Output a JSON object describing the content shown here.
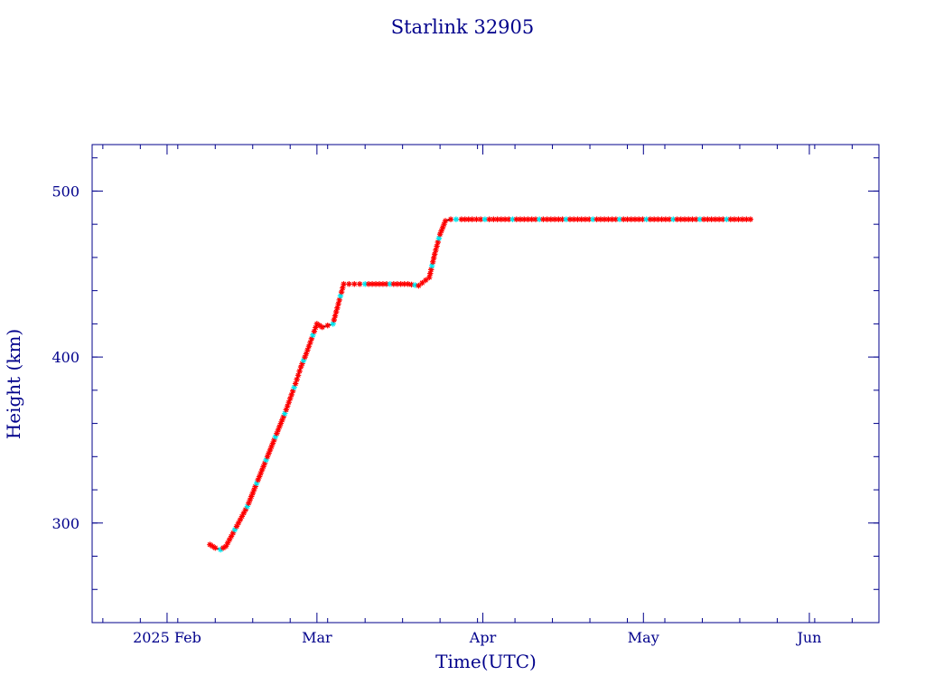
{
  "chart_data": {
    "type": "scatter",
    "title": "Starlink 32905",
    "xlabel": "Time(UTC)",
    "ylabel": "Height (km)",
    "x_ticks": [
      {
        "date": "2025-02-01",
        "label": "2025 Feb"
      },
      {
        "date": "2025-03-01",
        "label": "Mar"
      },
      {
        "date": "2025-04-01",
        "label": "Apr"
      },
      {
        "date": "2025-05-01",
        "label": "May"
      },
      {
        "date": "2025-06-01",
        "label": "Jun"
      }
    ],
    "y_ticks": [
      300,
      400,
      500
    ],
    "xlim": [
      "2025-01-18",
      "2025-06-14"
    ],
    "ylim": [
      240,
      528
    ],
    "grid": false,
    "colors": {
      "axes": "#00008b",
      "points": "#ff0000",
      "alt_points": "#00e5ee",
      "line": "#000000"
    },
    "series": [
      {
        "marker": "star",
        "x": [
          "2025-02-09",
          "2025-02-10",
          "2025-02-11",
          "2025-02-12",
          "2025-02-13",
          "2025-02-14",
          "2025-02-15",
          "2025-02-16",
          "2025-02-17",
          "2025-02-18",
          "2025-02-19",
          "2025-02-20",
          "2025-02-21",
          "2025-02-22",
          "2025-02-23",
          "2025-02-24",
          "2025-02-25",
          "2025-02-26",
          "2025-02-27",
          "2025-02-28",
          "2025-03-01",
          "2025-03-02",
          "2025-03-03",
          "2025-03-04",
          "2025-03-05",
          "2025-03-06",
          "2025-03-07",
          "2025-03-08",
          "2025-03-09",
          "2025-03-10",
          "2025-03-12",
          "2025-03-14",
          "2025-03-16",
          "2025-03-18",
          "2025-03-20",
          "2025-03-22",
          "2025-03-23",
          "2025-03-24",
          "2025-03-25",
          "2025-03-26",
          "2025-03-27",
          "2025-03-28",
          "2025-03-30",
          "2025-04-03",
          "2025-04-08",
          "2025-04-13",
          "2025-04-18",
          "2025-04-23",
          "2025-04-28",
          "2025-05-03",
          "2025-05-08",
          "2025-05-13",
          "2025-05-18",
          "2025-05-21"
        ],
        "y": [
          287,
          285,
          284,
          286,
          292,
          298,
          304,
          310,
          318,
          326,
          334,
          342,
          350,
          358,
          366,
          375,
          384,
          394,
          402,
          411,
          420,
          418,
          419,
          420,
          432,
          444,
          444,
          444,
          444,
          444,
          444,
          444,
          444,
          444,
          443,
          448,
          462,
          474,
          482,
          483,
          483,
          483,
          483,
          483,
          483,
          483,
          483,
          483,
          483,
          483,
          483,
          483,
          483,
          483
        ]
      }
    ]
  }
}
